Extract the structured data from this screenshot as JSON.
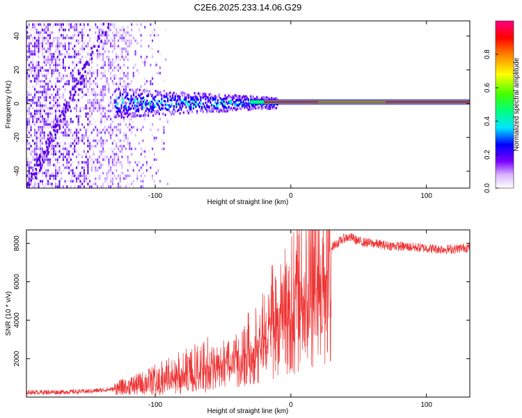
{
  "title": "C2E6.2025.233.14.06.G29",
  "chart_data": [
    {
      "type": "heatmap",
      "xlabel": "Height of straight line (km)",
      "ylabel": "Frequency (Hz)",
      "xlim": [
        -195,
        132
      ],
      "ylim": [
        -50,
        49
      ],
      "xticks": [
        -100,
        0,
        100
      ],
      "yticks": [
        -40,
        -20,
        0,
        20,
        40
      ],
      "colorbar": {
        "label": "Normalized spectral amplitude",
        "range": [
          0,
          1
        ],
        "ticks": [
          0.0,
          0.2,
          0.4,
          0.6,
          0.8
        ],
        "tick_labels": [
          "0.0",
          "0.2",
          "0.4",
          "0.6",
          "0.8"
        ],
        "colors": [
          "#ffffff",
          "#d9b3ff",
          "#7a00ff",
          "#0000ff",
          "#00e5ff",
          "#00ff80",
          "#40ff00",
          "#ffff00",
          "#ff8000",
          "#ff0000",
          "#ff0080"
        ]
      },
      "features": {
        "noise_region_x": [
          -195,
          -90
        ],
        "signal_carrier_hz": 1,
        "carrier_start_x": -20,
        "spread_region_x": [
          -130,
          -10
        ]
      }
    },
    {
      "type": "line",
      "xlabel": "Height of straight line (km)",
      "ylabel": "SNR (10 * v/v)",
      "xlim": [
        -195,
        132
      ],
      "ylim": [
        0,
        8700
      ],
      "xticks": [
        -100,
        0,
        100
      ],
      "yticks": [
        2000,
        4000,
        6000,
        8000
      ],
      "series": [
        {
          "name": "SNR",
          "color": "#ee3333",
          "x": [
            -195,
            -170,
            -150,
            -130,
            -120,
            -110,
            -100,
            -90,
            -80,
            -70,
            -60,
            -50,
            -40,
            -30,
            -20,
            -15,
            -10,
            0,
            10,
            20,
            30,
            40,
            45,
            50,
            60,
            70,
            80,
            90,
            100,
            110,
            120,
            132
          ],
          "y": [
            250,
            260,
            300,
            420,
            550,
            700,
            900,
            1100,
            1300,
            1500,
            1700,
            2000,
            2400,
            3000,
            3800,
            4400,
            4900,
            5600,
            6300,
            7100,
            7800,
            8300,
            8300,
            8100,
            8000,
            7900,
            7850,
            7800,
            7750,
            7700,
            7700,
            7800
          ]
        }
      ]
    }
  ]
}
